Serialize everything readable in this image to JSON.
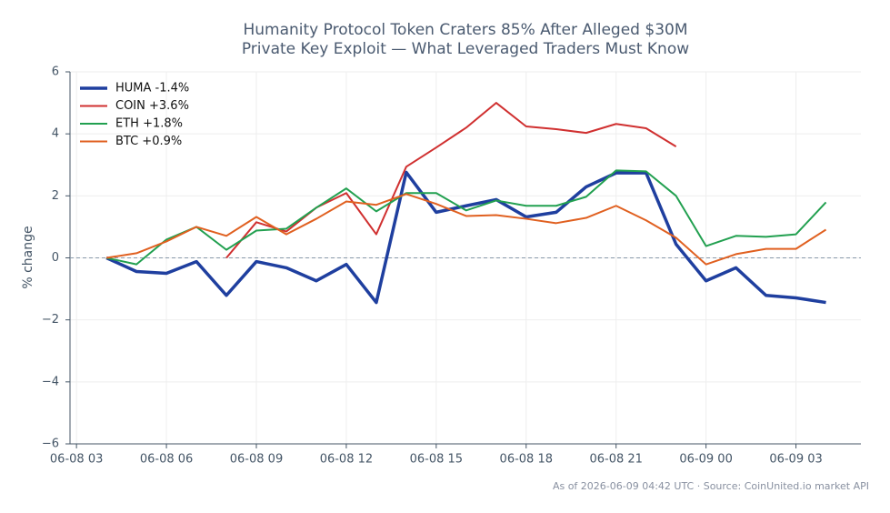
{
  "chart_data": {
    "type": "line",
    "title": [
      "Humanity Protocol Token Craters 85% After Alleged $30M",
      "Private Key Exploit — What Leveraged Traders Must Know"
    ],
    "y_label": "% change",
    "footnote": "As of 2026-06-09 04:42 UTC · Source: CoinUnited.io market API",
    "x": [
      "06-08 04",
      "06-08 05",
      "06-08 06",
      "06-08 07",
      "06-08 08",
      "06-08 09",
      "06-08 10",
      "06-08 11",
      "06-08 12",
      "06-08 13",
      "06-08 14",
      "06-08 15",
      "06-08 16",
      "06-08 17",
      "06-08 18",
      "06-08 19",
      "06-08 20",
      "06-08 21",
      "06-08 22",
      "06-08 23",
      "06-09 00",
      "06-09 01",
      "06-09 02",
      "06-09 03",
      "06-09 04"
    ],
    "xlim": [
      "06-08 02:47",
      "06-09 05:10"
    ],
    "xticks": [
      "06-08 03",
      "06-08 06",
      "06-08 09",
      "06-08 12",
      "06-08 15",
      "06-08 18",
      "06-08 21",
      "06-09 00",
      "06-09 03"
    ],
    "ylim": [
      -6,
      6
    ],
    "yticks": [
      {
        "value": -6,
        "label": "−6"
      },
      {
        "value": -4,
        "label": "−4"
      },
      {
        "value": -2,
        "label": "−2"
      },
      0,
      2,
      4,
      6
    ],
    "grid": true,
    "reference_line": 0,
    "legend": "upper-left",
    "series": [
      {
        "name": "HUMA -1.4%",
        "color": "#1f3f9f",
        "width": 3.5,
        "values": [
          0,
          -0.44,
          -0.5,
          -0.12,
          -1.21,
          -0.12,
          -0.32,
          -0.74,
          -0.21,
          -1.44,
          2.76,
          1.47,
          1.68,
          1.88,
          1.32,
          1.47,
          2.29,
          2.74,
          2.74,
          0.44,
          -0.74,
          -0.32,
          -1.21,
          -1.29,
          -1.44
        ]
      },
      {
        "name": "COIN +3.6%",
        "color": "#d03030",
        "width": 2,
        "values": [
          null,
          null,
          null,
          null,
          0,
          1.15,
          0.85,
          1.62,
          2.09,
          0.76,
          2.94,
          3.56,
          4.2,
          5.0,
          4.24,
          4.15,
          4.03,
          4.32,
          4.18,
          3.59,
          null,
          null,
          null,
          null,
          null
        ]
      },
      {
        "name": "ETH +1.8%",
        "color": "#22a050",
        "width": 2,
        "values": [
          0,
          -0.21,
          0.59,
          1.0,
          0.26,
          0.88,
          0.94,
          1.62,
          2.24,
          1.5,
          2.09,
          2.09,
          1.53,
          1.85,
          1.68,
          1.68,
          1.97,
          2.82,
          2.79,
          2.0,
          0.38,
          0.71,
          0.68,
          0.76,
          1.79
        ]
      },
      {
        "name": "BTC +0.9%",
        "color": "#e06020",
        "width": 2,
        "values": [
          0,
          0.15,
          0.53,
          1.0,
          0.71,
          1.32,
          0.76,
          1.26,
          1.82,
          1.71,
          2.06,
          1.74,
          1.35,
          1.38,
          1.26,
          1.12,
          1.29,
          1.68,
          1.21,
          0.65,
          -0.21,
          0.12,
          0.29,
          0.29,
          0.91
        ]
      }
    ]
  }
}
